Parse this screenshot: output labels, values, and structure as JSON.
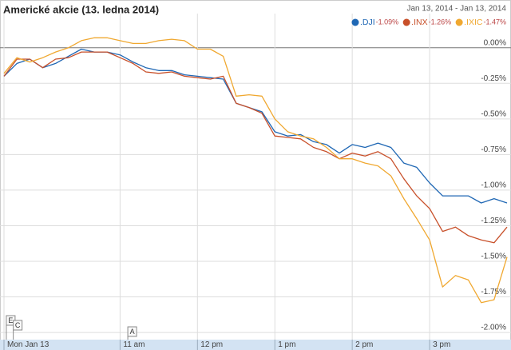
{
  "chart_data": {
    "type": "line",
    "title": "Americké akcie (13. ledna 2014)",
    "date_range": "Jan 13, 2014 - Jan 13, 2014",
    "x": [
      9.5,
      9.667,
      9.833,
      10,
      10.167,
      10.333,
      10.5,
      10.667,
      10.833,
      11,
      11.167,
      11.333,
      11.5,
      11.667,
      11.833,
      12,
      12.167,
      12.333,
      12.5,
      12.667,
      12.833,
      13,
      13.167,
      13.333,
      13.5,
      13.667,
      13.833,
      14,
      14.167,
      14.333,
      14.5,
      14.667,
      14.833,
      15,
      15.167,
      15.333,
      15.5,
      15.667,
      15.833,
      16
    ],
    "series": [
      {
        "name": ".DJI",
        "change_label": "-1.09%",
        "color": "#1f67b4",
        "values": [
          -0.2,
          -0.11,
          -0.08,
          -0.14,
          -0.11,
          -0.06,
          -0.01,
          -0.03,
          -0.03,
          -0.05,
          -0.1,
          -0.14,
          -0.16,
          -0.16,
          -0.19,
          -0.2,
          -0.21,
          -0.22,
          -0.39,
          -0.42,
          -0.45,
          -0.59,
          -0.62,
          -0.61,
          -0.66,
          -0.68,
          -0.74,
          -0.68,
          -0.7,
          -0.67,
          -0.7,
          -0.81,
          -0.84,
          -0.95,
          -1.04,
          -1.04,
          -1.04,
          -1.09,
          -1.06,
          -1.09
        ]
      },
      {
        "name": ".INX",
        "change_label": "-1.26%",
        "color": "#c8502a",
        "values": [
          -0.2,
          -0.08,
          -0.08,
          -0.14,
          -0.08,
          -0.07,
          -0.03,
          -0.03,
          -0.03,
          -0.07,
          -0.11,
          -0.17,
          -0.18,
          -0.17,
          -0.2,
          -0.21,
          -0.22,
          -0.2,
          -0.39,
          -0.42,
          -0.46,
          -0.62,
          -0.63,
          -0.64,
          -0.7,
          -0.73,
          -0.78,
          -0.74,
          -0.76,
          -0.73,
          -0.78,
          -0.92,
          -1.04,
          -1.13,
          -1.29,
          -1.26,
          -1.32,
          -1.35,
          -1.37,
          -1.26
        ]
      },
      {
        "name": ".IXIC",
        "change_label": "-1.47%",
        "color": "#f0a830",
        "values": [
          -0.18,
          -0.07,
          -0.1,
          -0.07,
          -0.03,
          0,
          0.05,
          0.07,
          0.07,
          0.05,
          0.03,
          0.03,
          0.05,
          0.06,
          0.05,
          -0.01,
          -0.01,
          -0.06,
          -0.34,
          -0.33,
          -0.34,
          -0.5,
          -0.59,
          -0.62,
          -0.64,
          -0.7,
          -0.78,
          -0.78,
          -0.81,
          -0.83,
          -0.9,
          -1.06,
          -1.2,
          -1.35,
          -1.68,
          -1.6,
          -1.63,
          -1.79,
          -1.77,
          -1.47
        ]
      }
    ],
    "xlim": [
      9.5,
      16
    ],
    "xticks": [
      {
        "value": 9.5,
        "label": "Mon Jan 13"
      },
      {
        "value": 11,
        "label": "11 am"
      },
      {
        "value": 12,
        "label": "12 pm"
      },
      {
        "value": 13,
        "label": "1 pm"
      },
      {
        "value": 14,
        "label": "2 pm"
      },
      {
        "value": 15,
        "label": "3 pm"
      }
    ],
    "ylim": [
      -2.05,
      0.24
    ],
    "yticks": [
      {
        "value": 0,
        "label": "0.00%"
      },
      {
        "value": -0.25,
        "label": "-0.25%"
      },
      {
        "value": -0.5,
        "label": "-0.50%"
      },
      {
        "value": -0.75,
        "label": "-0.75%"
      },
      {
        "value": -1,
        "label": "-1.00%"
      },
      {
        "value": -1.25,
        "label": "-1.25%"
      },
      {
        "value": -1.5,
        "label": "-1.50%"
      },
      {
        "value": -1.75,
        "label": "-1.75%"
      },
      {
        "value": -2,
        "label": "-2.00%"
      }
    ],
    "grid": true,
    "annotations": [
      {
        "x": 9.53,
        "label": "E"
      },
      {
        "x": 9.62,
        "label": "C"
      },
      {
        "x": 11.1,
        "label": "A"
      }
    ]
  }
}
